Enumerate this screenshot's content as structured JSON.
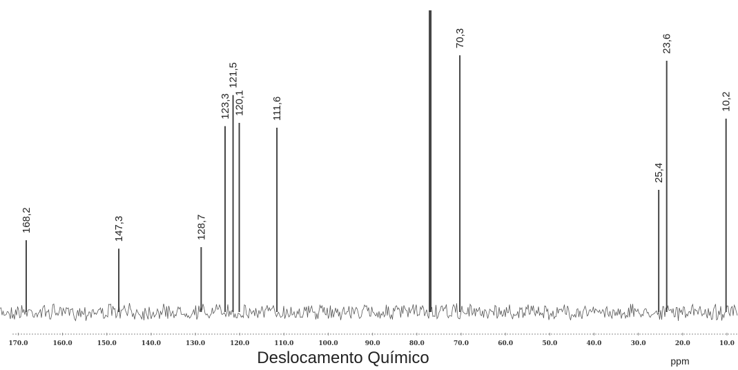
{
  "chart_data": {
    "type": "spectrum",
    "x": [
      168.2,
      147.3,
      128.7,
      123.3,
      121.5,
      120.1,
      111.6,
      77.0,
      70.3,
      25.4,
      23.6,
      10.2
    ],
    "values": [
      23.8,
      21.0,
      21.5,
      61.6,
      71.9,
      62.7,
      61.1,
      100,
      85.1,
      40.5,
      83.3,
      64.1
    ],
    "labels": [
      "168,2",
      "147,3",
      "128,7",
      "123,3",
      "121,5",
      "120,1",
      "111,6",
      null,
      "70,3",
      "25,4",
      "23,6",
      "10,2"
    ],
    "color": "#444444",
    "xlim": [
      171,
      7.5
    ],
    "ylim": [
      0,
      100
    ],
    "xticks": [
      {
        "value": 170,
        "label": "170.0"
      },
      {
        "value": 160,
        "label": "160.0"
      },
      {
        "value": 150,
        "label": "150.0"
      },
      {
        "value": 140,
        "label": "140.0"
      },
      {
        "value": 130,
        "label": "130.0"
      },
      {
        "value": 120,
        "label": "120.0"
      },
      {
        "value": 110,
        "label": "110.0"
      },
      {
        "value": 100,
        "label": "100.0"
      },
      {
        "value": 90,
        "label": "90.0"
      },
      {
        "value": 80,
        "label": "80.0"
      },
      {
        "value": 70,
        "label": "70.0"
      },
      {
        "value": 60,
        "label": "60.0"
      },
      {
        "value": 50,
        "label": "50.0"
      },
      {
        "value": 40,
        "label": "40.0"
      },
      {
        "value": 30,
        "label": "30.0"
      },
      {
        "value": 20,
        "label": "20.0"
      },
      {
        "value": 10,
        "label": "10.0"
      }
    ],
    "xlabel": "Deslocamento Químico",
    "xunit": "ppm"
  }
}
